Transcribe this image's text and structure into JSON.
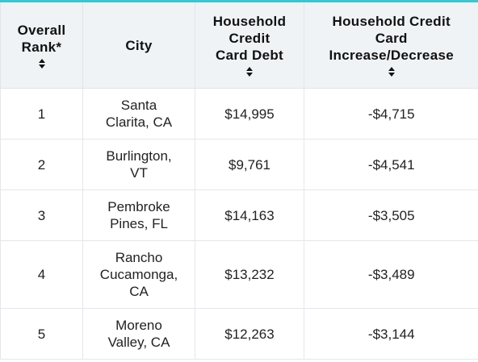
{
  "table": {
    "headers": [
      {
        "label": "Overall Rank*",
        "lines": [
          "Overall",
          "Rank*"
        ],
        "sort_icon": "sort-icon"
      },
      {
        "label": "City",
        "lines": [
          "City"
        ],
        "sort_icon": ""
      },
      {
        "label": "Household Credit Card Debt",
        "lines": [
          "Household",
          "Credit",
          "Card Debt"
        ],
        "sort_icon": "sort-icon"
      },
      {
        "label": "Household Credit Card Increase/Decrease",
        "lines": [
          "Household Credit",
          "Card",
          "Increase/Decrease"
        ],
        "sort_icon": "sort-icon"
      }
    ],
    "rows": [
      {
        "rank": "1",
        "city_lines": [
          "Santa",
          "Clarita, CA"
        ],
        "debt": "$14,995",
        "change": "-$4,715"
      },
      {
        "rank": "2",
        "city_lines": [
          "Burlington,",
          "VT"
        ],
        "debt": "$9,761",
        "change": "-$4,541"
      },
      {
        "rank": "3",
        "city_lines": [
          "Pembroke",
          "Pines, FL"
        ],
        "debt": "$14,163",
        "change": "-$3,505"
      },
      {
        "rank": "4",
        "city_lines": [
          "Rancho",
          "Cucamonga,",
          "CA"
        ],
        "debt": "$13,232",
        "change": "-$3,489"
      },
      {
        "rank": "5",
        "city_lines": [
          "Moreno",
          "Valley, CA"
        ],
        "debt": "$12,263",
        "change": "-$3,144"
      }
    ]
  },
  "colors": {
    "accent": "#3cc6cf",
    "header_bg": "#f0f3f6",
    "border": "#e4e6e9"
  }
}
